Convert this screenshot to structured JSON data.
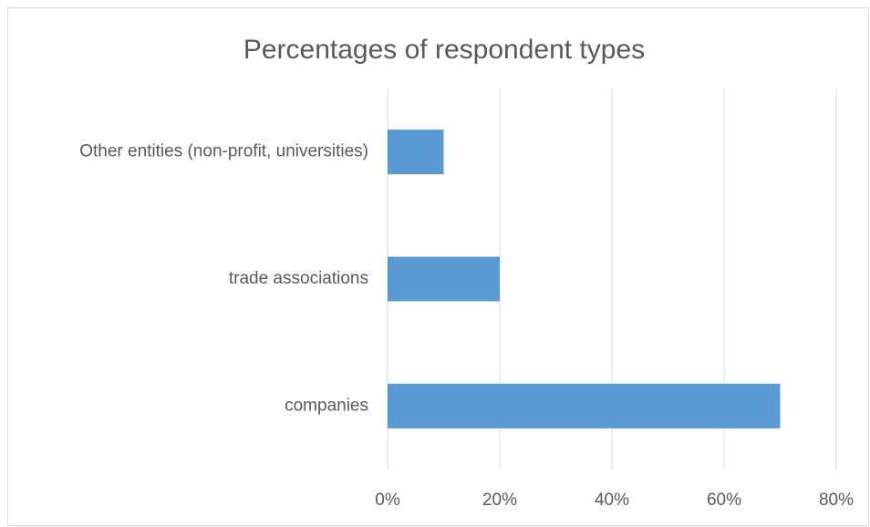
{
  "chart_data": {
    "type": "bar",
    "orientation": "horizontal",
    "title": "Percentages of respondent types",
    "categories": [
      "Other entities (non-profit, universities)",
      "trade associations",
      "companies"
    ],
    "values": [
      10,
      20,
      70
    ],
    "color": "#5b9bd5",
    "xlim": [
      0,
      80
    ],
    "xticks": [
      {
        "value": 0,
        "label": "0%"
      },
      {
        "value": 20,
        "label": "20%"
      },
      {
        "value": 40,
        "label": "40%"
      },
      {
        "value": 60,
        "label": "60%"
      },
      {
        "value": 80,
        "label": "80%"
      }
    ],
    "grid": true
  }
}
